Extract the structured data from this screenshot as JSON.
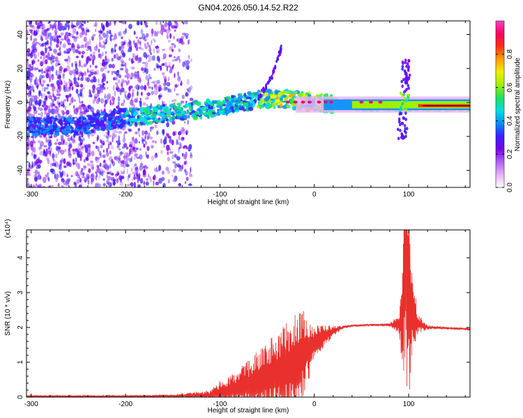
{
  "title": "GN04.2026.050.14.52.R22",
  "colors": {
    "snr_line": "#e8302c",
    "axis": "#000000",
    "background": "#ffffff"
  },
  "colorbar": {
    "label": "Normalized spectral amplitude",
    "ticks": [
      "0.0",
      "0.2",
      "0.4",
      "0.6",
      "0.8"
    ],
    "colormap": [
      "#ffffff",
      "#e8b0f8",
      "#b060f8",
      "#7a00f0",
      "#3a20ff",
      "#0090ff",
      "#00e0e0",
      "#20e060",
      "#a0f000",
      "#f0f000",
      "#ffa000",
      "#ff3010",
      "#ff0060",
      "#ff40c0"
    ]
  },
  "chart_data": [
    {
      "type": "heatmap",
      "title": "GN04.2026.050.14.52.R22",
      "xlabel": "Height of straight line (km)",
      "ylabel": "Frequency (Hz)",
      "xlim": [
        -305,
        165
      ],
      "ylim": [
        -50,
        48
      ],
      "xticks": [
        "-300",
        "-200",
        "-100",
        "0",
        "100"
      ],
      "yticks": [
        "-40",
        "-20",
        "0",
        "20",
        "40"
      ],
      "colorbar_label": "Normalized spectral amplitude",
      "colorbar_range": [
        0,
        1
      ],
      "features": {
        "noise_region_x": [
          -305,
          -130
        ],
        "ridge": {
          "x": [
            -305,
            -240,
            -200,
            -150,
            -100,
            -60,
            -30,
            0,
            50,
            100,
            165
          ],
          "y": [
            -14,
            -13,
            -9,
            -6,
            -3,
            2,
            2,
            0,
            -2,
            -2,
            -2
          ]
        },
        "strong_band_x": [
          -20,
          165
        ],
        "spike_x": 95,
        "spike_y_range": [
          -22,
          25
        ],
        "branch": {
          "x": [
            -60,
            -45,
            -35
          ],
          "y": [
            2,
            15,
            32
          ]
        }
      }
    },
    {
      "type": "line",
      "xlabel": "Height of straight line (km)",
      "ylabel": "SNR (10 * v/v)",
      "y_multiplier": "(x10⁴)",
      "xlim": [
        -305,
        165
      ],
      "ylim": [
        0,
        4.8
      ],
      "xticks": [
        "-300",
        "-200",
        "-100",
        "0",
        "100"
      ],
      "yticks": [
        "0",
        "1",
        "2",
        "3",
        "4"
      ],
      "series": [
        {
          "x": [
            -305,
            -200,
            -150,
            -110,
            -100,
            -80,
            -60,
            -40,
            -20,
            -10,
            0,
            10,
            20,
            30,
            40,
            60,
            80,
            90,
            94,
            97,
            99,
            102,
            105,
            110,
            120,
            140,
            165
          ],
          "y": [
            0.02,
            0.02,
            0.03,
            0.05,
            0.12,
            0.25,
            0.45,
            0.65,
            0.95,
            1.3,
            1.55,
            1.75,
            1.9,
            2.0,
            2.05,
            2.07,
            2.07,
            2.1,
            2.5,
            4.2,
            3.0,
            2.6,
            2.4,
            2.1,
            2.0,
            1.98,
            1.95
          ],
          "envelope": [
            0.03,
            0.03,
            0.05,
            0.15,
            0.35,
            0.55,
            0.9,
            1.2,
            1.6,
            1.2,
            0.5,
            0.35,
            0.15,
            0.05,
            0.03,
            0.03,
            0.05,
            0.3,
            1.9,
            4.6,
            4.0,
            2.1,
            1.1,
            0.3,
            0.06,
            0.04,
            0.04
          ]
        }
      ]
    }
  ]
}
